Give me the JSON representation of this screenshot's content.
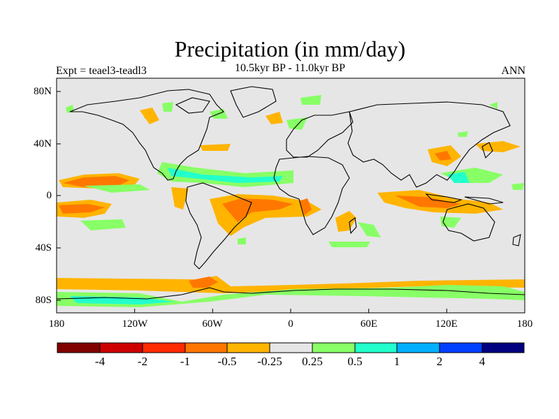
{
  "map": {
    "title": "Precipitation (in mm/day)",
    "subtitle": "10.5kyr BP - 11.0kyr BP",
    "experiment": "Expt = teael3-teadl3",
    "season": "ANN",
    "latitude_labels": [
      "80N",
      "40N",
      "0",
      "40S",
      "80S"
    ],
    "longitude_labels": [
      "180",
      "120W",
      "60W",
      "0",
      "60E",
      "120E",
      "180"
    ]
  },
  "colorbar": {
    "colors": [
      "#800000",
      "#cc0000",
      "#ff2a00",
      "#ff7700",
      "#ffb400",
      "#e6e6e6",
      "#88ff66",
      "#22ffcc",
      "#00b0ff",
      "#0040ff",
      "#000080"
    ],
    "labels": [
      "-4",
      "-2",
      "-1",
      "-0.5",
      "-0.25",
      "0.25",
      "0.5",
      "1",
      "2",
      "4"
    ]
  },
  "anomaly_colors": {
    "ocean": "#e6e6e6",
    "neg_weak": "#ffb400",
    "neg_mid": "#ff7700",
    "pos_weak": "#88ff66",
    "pos_mid": "#22ffcc",
    "coast": "#000000"
  }
}
